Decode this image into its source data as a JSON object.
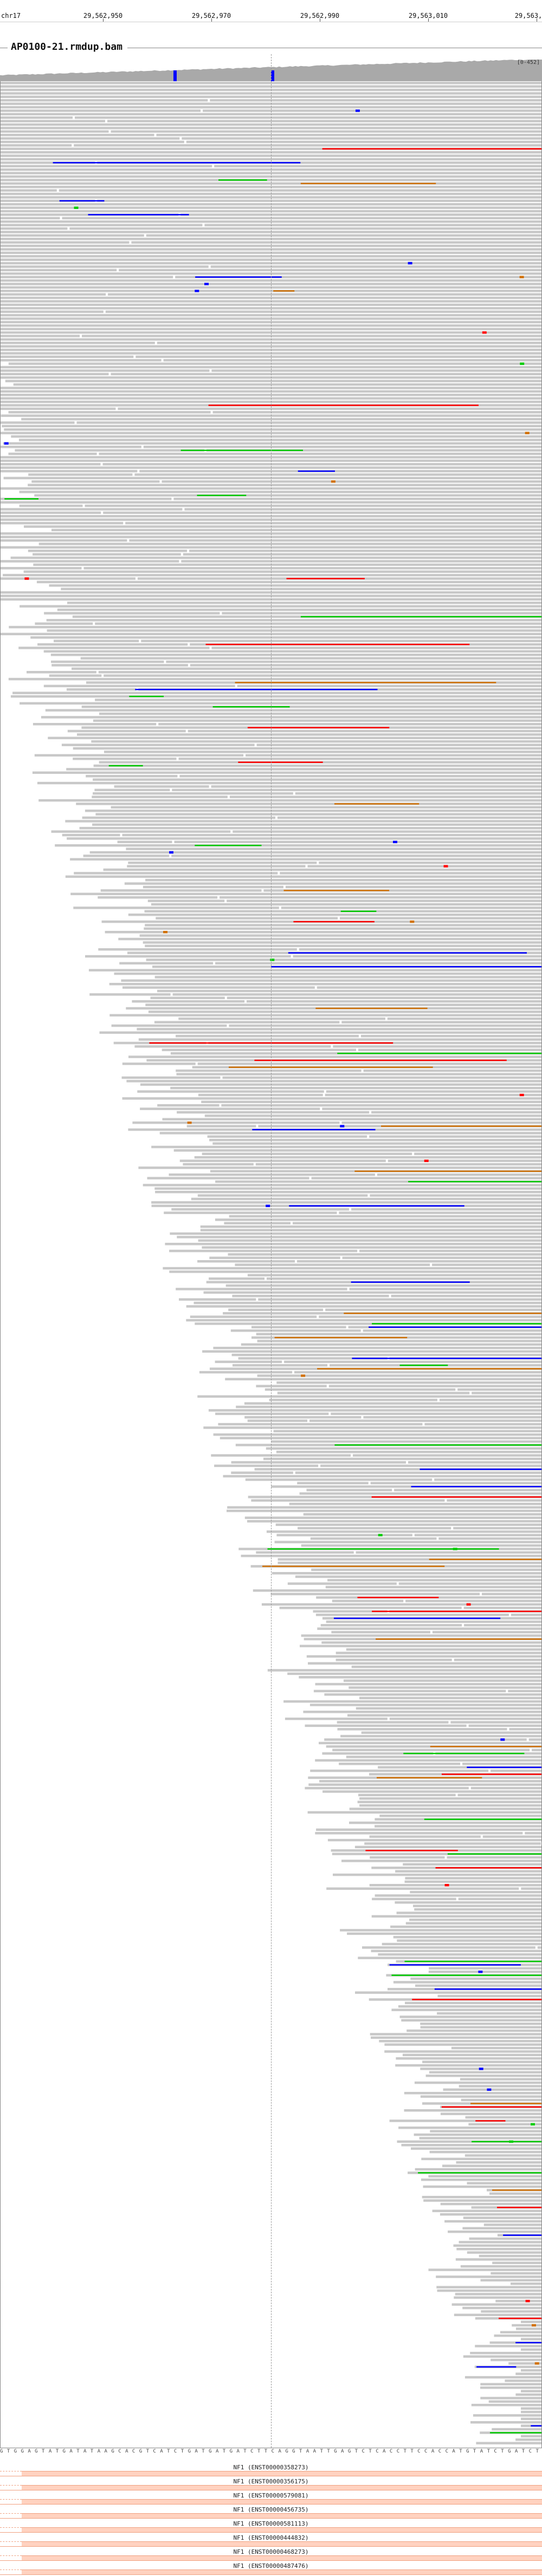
{
  "ruler": {
    "chromosome": "chr17",
    "positions": [
      "29,562,950",
      "29,562,970",
      "29,562,990",
      "29,563,010",
      "29,563,"
    ]
  },
  "track": {
    "title": "AP0100-21.rmdup.bam",
    "coverage_range": "[0-452]"
  },
  "colors": {
    "read": "#c8c8c8",
    "coverage": "#a9a9a9",
    "mismatch_A": "#00cc00",
    "mismatch_C": "#0000ff",
    "mismatch_G": "#d17105",
    "mismatch_T": "#ff0000",
    "insertion": "#800080",
    "gene": "#ffd2c0"
  },
  "sequence": "G T G G A G T A T G A T A T A A G C A C G T C A T C T G A T G A T G A T C T T C A G G T A A T T G A G T C T C A C C T T C C A C C A T G T A T C T G A T C T G G T G C A G C G A T C A T G T C T C C G A G A T C T G T G G A G T C A G C A C T T A G A T C A G A C C",
  "genes": [
    {
      "label": "NF1 (ENST00000358273)"
    },
    {
      "label": "NF1 (ENST00000356175)"
    },
    {
      "label": "NF1 (ENST00000579081)"
    },
    {
      "label": "NF1 (ENST00000456735)"
    },
    {
      "label": "NF1 (ENST00000581113)"
    },
    {
      "label": "NF1 (ENST00000444832)"
    },
    {
      "label": "NF1 (ENST00000468273)"
    },
    {
      "label": "NF1 (ENST00000487476)"
    }
  ]
}
